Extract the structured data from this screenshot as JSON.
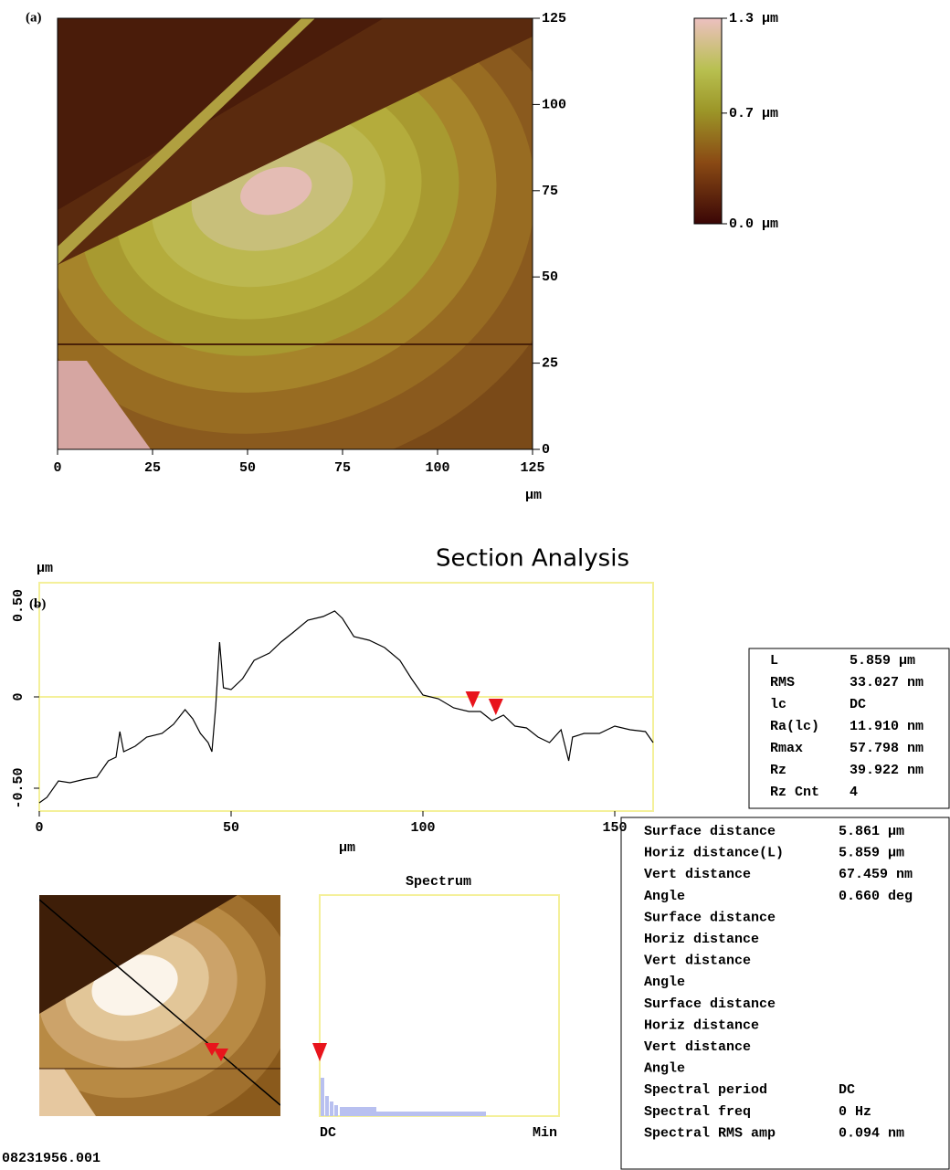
{
  "panel_a": {
    "label": "(a)",
    "xlim": [
      0,
      125
    ],
    "ylim": [
      0,
      125
    ],
    "xticks": [
      0,
      25,
      50,
      75,
      100,
      125
    ],
    "yticks": [
      0,
      25,
      50,
      75,
      100,
      125
    ],
    "unit": "μm",
    "colorbar": {
      "clim": [
        0,
        1.3
      ],
      "ticks": [
        {
          "value": 1.3,
          "label": "1.3 μm"
        },
        {
          "value": 0.7,
          "label": "0.7 μm"
        },
        {
          "value": 0,
          "label": "0.0 μm"
        }
      ]
    }
  },
  "section": {
    "type": "line",
    "title": "Section Analysis",
    "label": "(b)",
    "y_unit": "μm",
    "x_unit": "μm",
    "xlim": [
      0,
      160
    ],
    "ylim": [
      -0.625,
      0.625
    ],
    "xticks": [
      0,
      50,
      100,
      150
    ],
    "yticks": [
      {
        "value": -0.5,
        "label": "-0.50"
      },
      0,
      {
        "value": 0.5,
        "label": "0.50"
      }
    ],
    "x": [
      0,
      2,
      5,
      8,
      12,
      15,
      18,
      20,
      21,
      22,
      25,
      28,
      32,
      35,
      38,
      40,
      42,
      44,
      45,
      46,
      47,
      48,
      50,
      53,
      56,
      60,
      63,
      66,
      70,
      74,
      77,
      79,
      82,
      86,
      90,
      94,
      97,
      100,
      104,
      108,
      112,
      115,
      118,
      121,
      124,
      127,
      130,
      133,
      136,
      138,
      139,
      142,
      146,
      150,
      154,
      158,
      160
    ],
    "values": [
      -0.58,
      -0.55,
      -0.46,
      -0.47,
      -0.45,
      -0.44,
      -0.35,
      -0.33,
      -0.19,
      -0.3,
      -0.27,
      -0.22,
      -0.2,
      -0.15,
      -0.07,
      -0.12,
      -0.2,
      -0.25,
      -0.3,
      -0.05,
      0.3,
      0.05,
      0.04,
      0.1,
      0.2,
      0.24,
      0.3,
      0.35,
      0.42,
      0.44,
      0.47,
      0.43,
      0.33,
      0.31,
      0.27,
      0.2,
      0.1,
      0.01,
      -0.01,
      -0.06,
      -0.08,
      -0.08,
      -0.13,
      -0.1,
      -0.16,
      -0.17,
      -0.22,
      -0.25,
      -0.18,
      -0.35,
      -0.22,
      -0.2,
      -0.2,
      -0.16,
      -0.18,
      -0.19,
      -0.25
    ],
    "cursors": [
      113,
      119
    ],
    "color": "#000000"
  },
  "stats": [
    [
      "L",
      "5.859 μm"
    ],
    [
      "RMS",
      "33.027 nm"
    ],
    [
      "lc",
      "DC"
    ],
    [
      "Ra(lc)",
      "11.910 nm"
    ],
    [
      "Rmax",
      "57.798 nm"
    ],
    [
      "Rz",
      "39.922 nm"
    ],
    [
      "Rz Cnt",
      "4"
    ]
  ],
  "spectrum": {
    "title": "Spectrum",
    "x_labels": [
      "DC",
      "Min"
    ]
  },
  "measurements": [
    {
      "name": "Surface distance",
      "value": "5.861 μm",
      "color": "#e8141c"
    },
    {
      "name": "Horiz distance(L)",
      "value": "5.859 μm",
      "color": "#e8141c"
    },
    {
      "name": "Vert distance",
      "value": "67.459 nm",
      "color": "#e8141c"
    },
    {
      "name": "Angle",
      "value": "0.660 deg",
      "color": "#e8141c"
    },
    {
      "name": "Surface distance",
      "color": "#22dd22"
    },
    {
      "name": "Horiz distance",
      "color": "#22dd22"
    },
    {
      "name": "Vert distance",
      "color": "#22dd22"
    },
    {
      "name": "Angle",
      "color": "#22dd22"
    },
    {
      "name": "Surface distance",
      "color": "#000000"
    },
    {
      "name": "Horiz distance",
      "color": "#000000"
    },
    {
      "name": "Vert distance",
      "color": "#000000"
    },
    {
      "name": "Angle",
      "color": "#000000"
    },
    {
      "name": "Spectral period",
      "value": "DC",
      "color": "#e8141c"
    },
    {
      "name": "Spectral freq",
      "value": "0 Hz",
      "color": "#e8141c"
    },
    {
      "name": "Spectral RMS amp",
      "value": "0.094 nm",
      "color": "#e8141c"
    }
  ],
  "filename": "08231956.001"
}
